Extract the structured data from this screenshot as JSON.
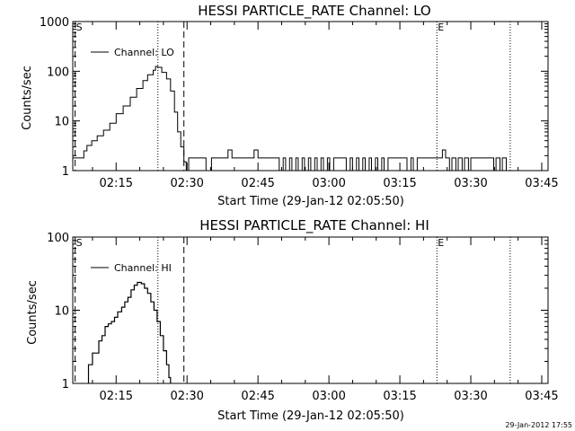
{
  "footer": {
    "timestamp": "29-Jan-2012 17:55"
  },
  "chart_data": [
    {
      "type": "line",
      "title": "HESSI PARTICLE_RATE Channel: LO",
      "xlabel": "Start Time (29-Jan-12 02:05:50)",
      "ylabel": "Counts/sec",
      "y_scale": "log",
      "ylim": [
        1,
        1000
      ],
      "y_ticks": [
        1,
        10,
        100,
        1000
      ],
      "y_tick_labels": [
        "1",
        "10",
        "100",
        "1000"
      ],
      "xlim": [
        "02:05:50",
        "03:46:20"
      ],
      "x_ticks": [
        "02:15",
        "02:30",
        "02:45",
        "03:00",
        "03:15",
        "03:30",
        "03:45"
      ],
      "legend": {
        "entries": [
          "Channel: LO"
        ],
        "placement": "top-left"
      },
      "markers": [
        {
          "label": "S",
          "time": "02:06:20"
        },
        {
          "label": "E",
          "time": "03:22:50"
        }
      ],
      "vlines": [
        {
          "time": "02:06:20",
          "style": "dashed"
        },
        {
          "time": "02:23:50",
          "style": "dotted"
        },
        {
          "time": "02:29:20",
          "style": "dashed"
        },
        {
          "time": "03:22:50",
          "style": "dotted"
        },
        {
          "time": "03:38:20",
          "style": "dotted"
        }
      ],
      "series": [
        {
          "name": "Channel: LO",
          "x": [
            "02:05:50",
            "02:07:20",
            "02:08:10",
            "02:08:50",
            "02:09:50",
            "02:11:00",
            "02:12:20",
            "02:13:40",
            "02:15:00",
            "02:16:30",
            "02:18:00",
            "02:19:20",
            "02:20:40",
            "02:21:40",
            "02:22:50",
            "02:23:20",
            "02:23:50",
            "02:24:40",
            "02:25:40",
            "02:26:30",
            "02:27:20",
            "02:28:00",
            "02:28:40",
            "02:29:20",
            "02:29:50",
            "02:30:20",
            "02:31:00",
            "02:31:40",
            "02:32:20",
            "02:33:20",
            "02:34:00",
            "02:34:30",
            "02:35:10",
            "02:35:50",
            "02:36:40",
            "02:38:10",
            "02:38:40",
            "02:39:30",
            "02:40:00",
            "02:40:50",
            "02:41:20",
            "02:43:40",
            "02:44:10",
            "02:45:00",
            "02:45:30",
            "02:49:00",
            "02:49:30",
            "02:50:20",
            "02:50:50",
            "02:51:40",
            "02:52:10",
            "02:53:00",
            "02:53:30",
            "02:54:20",
            "02:54:50",
            "02:55:40",
            "02:56:10",
            "02:57:00",
            "02:57:30",
            "02:58:20",
            "02:58:50",
            "02:59:40",
            "03:00:10",
            "03:01:00",
            "03:01:30",
            "03:03:10",
            "03:03:40",
            "03:04:30",
            "03:05:00",
            "03:05:50",
            "03:06:20",
            "03:07:10",
            "03:07:40",
            "03:08:30",
            "03:09:00",
            "03:09:50",
            "03:10:20",
            "03:11:10",
            "03:11:40",
            "03:12:30",
            "03:13:00",
            "03:16:00",
            "03:16:30",
            "03:17:20",
            "03:17:50",
            "03:18:40",
            "03:19:10",
            "03:23:20",
            "03:24:00",
            "03:24:40",
            "03:25:30",
            "03:26:00",
            "03:26:50",
            "03:27:20",
            "03:28:10",
            "03:28:40",
            "03:29:30",
            "03:30:00",
            "03:30:50",
            "03:31:20",
            "03:33:30",
            "03:34:00",
            "03:34:50",
            "03:35:20",
            "03:36:10",
            "03:36:40",
            "03:37:30",
            "03:38:20"
          ],
          "values": [
            1.8,
            1.8,
            2.5,
            3.2,
            4.0,
            5.0,
            6.5,
            9.0,
            14,
            20,
            30,
            45,
            65,
            85,
            105,
            125,
            120,
            95,
            70,
            40,
            15,
            6,
            3,
            1.5,
            1.0,
            1.8,
            1.8,
            1.8,
            1.8,
            1.8,
            1.0,
            1.0,
            1.8,
            1.8,
            1.8,
            1.8,
            2.6,
            1.8,
            1.8,
            1.8,
            1.8,
            1.8,
            2.6,
            1.8,
            1.8,
            1.8,
            1.0,
            1.8,
            1.0,
            1.8,
            1.0,
            1.8,
            1.0,
            1.8,
            1.0,
            1.8,
            1.0,
            1.8,
            1.0,
            1.8,
            1.0,
            1.8,
            1.0,
            1.8,
            1.8,
            1.8,
            1.0,
            1.8,
            1.0,
            1.8,
            1.0,
            1.8,
            1.0,
            1.8,
            1.0,
            1.8,
            1.0,
            1.8,
            1.0,
            1.8,
            1.8,
            1.8,
            1.0,
            1.8,
            1.0,
            1.8,
            1.8,
            1.8,
            2.6,
            1.8,
            1.0,
            1.8,
            1.0,
            1.8,
            1.0,
            1.8,
            1.0,
            1.8,
            1.8,
            1.8,
            1.8,
            1.8,
            1.0,
            1.8,
            1.0,
            1.8,
            1.0,
            1.0
          ]
        }
      ]
    },
    {
      "type": "line",
      "title": "HESSI PARTICLE_RATE Channel: HI",
      "xlabel": "Start Time (29-Jan-12 02:05:50)",
      "ylabel": "Counts/sec",
      "y_scale": "log",
      "ylim": [
        1,
        100
      ],
      "y_ticks": [
        1,
        10,
        100
      ],
      "y_tick_labels": [
        "1",
        "10",
        "100"
      ],
      "xlim": [
        "02:05:50",
        "03:46:20"
      ],
      "x_ticks": [
        "02:15",
        "02:30",
        "02:45",
        "03:00",
        "03:15",
        "03:30",
        "03:45"
      ],
      "legend": {
        "entries": [
          "Channel: HI"
        ],
        "placement": "top-left"
      },
      "markers": [
        {
          "label": "S",
          "time": "02:06:20"
        },
        {
          "label": "E",
          "time": "03:22:50"
        }
      ],
      "vlines": [
        {
          "time": "02:06:20",
          "style": "dashed"
        },
        {
          "time": "02:23:50",
          "style": "dotted"
        },
        {
          "time": "02:29:20",
          "style": "dashed"
        },
        {
          "time": "03:22:50",
          "style": "dotted"
        },
        {
          "time": "03:38:20",
          "style": "dotted"
        }
      ],
      "series": [
        {
          "name": "Channel: HI",
          "x": [
            "02:09:10",
            "02:09:10",
            "02:10:00",
            "02:10:40",
            "02:11:20",
            "02:12:00",
            "02:12:40",
            "02:13:20",
            "02:14:00",
            "02:14:40",
            "02:15:20",
            "02:16:10",
            "02:16:50",
            "02:17:30",
            "02:18:10",
            "02:18:50",
            "02:19:30",
            "02:20:20",
            "02:21:00",
            "02:21:40",
            "02:22:20",
            "02:23:00",
            "02:23:40",
            "02:24:20",
            "02:25:00",
            "02:25:40",
            "02:26:10",
            "02:26:30"
          ],
          "values": [
            1.0,
            1.8,
            2.6,
            2.6,
            3.8,
            4.5,
            6.0,
            6.5,
            7.0,
            8.0,
            9.5,
            11,
            13,
            15,
            19,
            22,
            24,
            23,
            20,
            17,
            13,
            10,
            7,
            4.5,
            2.8,
            1.8,
            1.2,
            1.0
          ]
        }
      ]
    }
  ]
}
